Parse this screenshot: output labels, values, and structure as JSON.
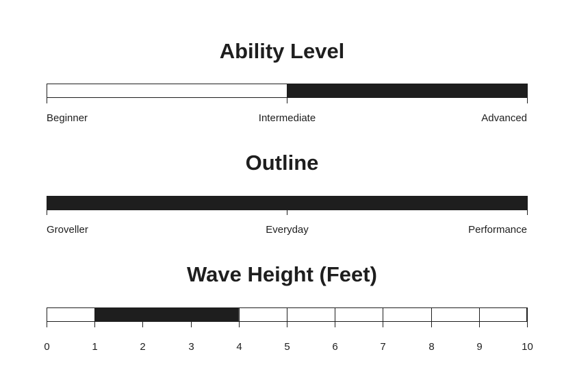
{
  "colors": {
    "fill": "#1e1e1e",
    "empty": "#ffffff",
    "outline": "#1e1e1e"
  },
  "chart_data": [
    {
      "type": "bar",
      "title": "Ability Level",
      "scale": "categorical",
      "labels": [
        "Beginner",
        "Intermediate",
        "Advanced"
      ],
      "range": [
        0,
        1
      ],
      "filled": [
        0.5,
        1.0
      ]
    },
    {
      "type": "bar",
      "title": "Outline",
      "scale": "categorical",
      "labels": [
        "Groveller",
        "Everyday",
        "Performance"
      ],
      "range": [
        0,
        1
      ],
      "filled": [
        0.0,
        1.0
      ]
    },
    {
      "type": "bar",
      "title": "Wave Height (Feet)",
      "scale": "numeric",
      "labels": [
        "0",
        "1",
        "2",
        "3",
        "4",
        "5",
        "6",
        "7",
        "8",
        "9",
        "10"
      ],
      "range": [
        0,
        10
      ],
      "filled": [
        1,
        4
      ]
    }
  ]
}
